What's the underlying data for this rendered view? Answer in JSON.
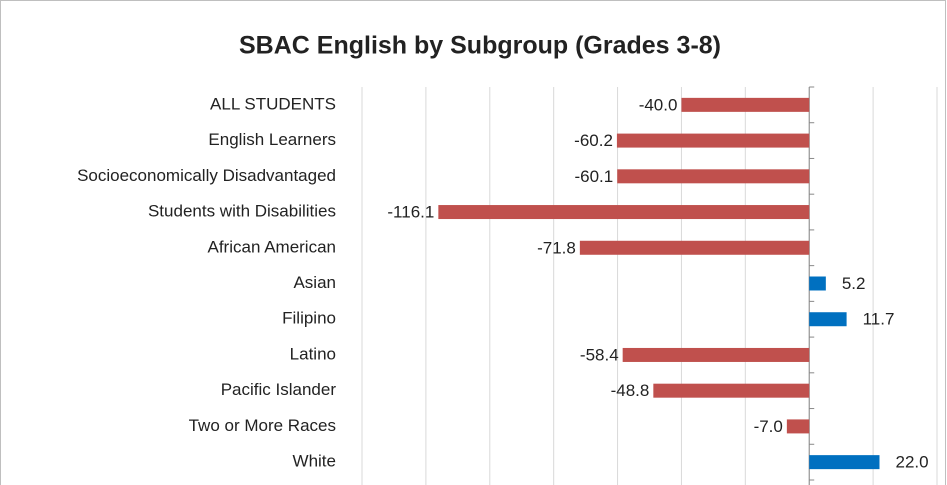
{
  "chart_data": {
    "type": "hbar",
    "title": "SBAC English by Subgroup (Grades 3-8)",
    "categories": [
      "ALL STUDENTS",
      "English Learners",
      "Socioeconomically Disadvantaged",
      "Students with Disabilities",
      "African American",
      "Asian",
      "Filipino",
      "Latino",
      "Pacific Islander",
      "Two or More Races",
      "White"
    ],
    "values": [
      -40.0,
      -60.2,
      -60.1,
      -116.1,
      -71.8,
      5.2,
      11.7,
      -58.4,
      -48.8,
      -7.0,
      22.0
    ],
    "value_labels": [
      "-40.0",
      "-60.2",
      "-60.1",
      "-116.1",
      "-71.8",
      "5.2",
      "11.7",
      "-58.4",
      "-48.8",
      "-7.0",
      "22.0"
    ],
    "colors": [
      "#c0504d",
      "#c0504d",
      "#c0504d",
      "#c0504d",
      "#c0504d",
      "#0070c0",
      "#0070c0",
      "#c0504d",
      "#c0504d",
      "#c0504d",
      "#0070c0"
    ],
    "xlim": [
      -140,
      40
    ],
    "xticks": [
      -140,
      -120,
      -100,
      -80,
      -60,
      -40,
      -20,
      0,
      20,
      40
    ],
    "grid": true
  }
}
